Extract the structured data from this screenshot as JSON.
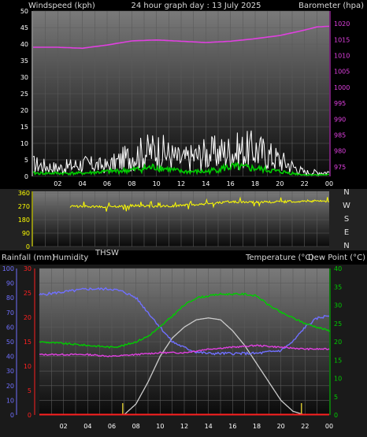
{
  "header": {
    "left": "Windspeed (kph)",
    "center": "24 hour graph day : 13 July 2025",
    "right": "Barometer (hpa)"
  },
  "middle_header": {
    "left": "Rainfall (mm)",
    "humidity": "Humidity",
    "thsw": "THSW",
    "temperature": "Temperature (°C)",
    "dew_point": "Dew Point (°C)"
  },
  "compass_labels": [
    "N",
    "W",
    "S",
    "E",
    "N"
  ],
  "colors": {
    "barometer": "#e040e0",
    "wind_gust": "#ffffff",
    "wind_avg": "#00cc00",
    "direction": "#ffff00",
    "humidity": "#7070ff",
    "temperature": "#00cc00",
    "dew_point": "#e040e0",
    "solar": "#cccccc",
    "rain_axis": "#ff2020",
    "temp_axis": "#00cc00"
  },
  "chart_data": [
    {
      "type": "line",
      "id": "wind-barometer",
      "x_ticks": [
        "02",
        "04",
        "06",
        "08",
        "10",
        "12",
        "14",
        "16",
        "18",
        "20",
        "22",
        "00"
      ],
      "left_axis": {
        "ticks": [
          0,
          5,
          10,
          15,
          20,
          25,
          30,
          35,
          40,
          45,
          50
        ],
        "ylim": [
          0,
          50
        ]
      },
      "right_axis": {
        "ticks": [
          975,
          980,
          985,
          990,
          995,
          1000,
          1005,
          1010,
          1015,
          1020
        ],
        "ylim": [
          972,
          1024
        ]
      },
      "series": [
        {
          "x": [
            0,
            2,
            4,
            6,
            8,
            10,
            12,
            14,
            16,
            18,
            20,
            22,
            23,
            24
          ],
          "values": [
            1012.6,
            1012.6,
            1012.3,
            1013.3,
            1014.6,
            1014.9,
            1014.5,
            1014.1,
            1014.5,
            1015.3,
            1016.3,
            1018.0,
            1019.0,
            1019.2
          ]
        }
      ],
      "wind_avg": {
        "x": [
          0,
          2,
          4,
          6,
          8,
          10,
          12,
          14,
          16,
          18,
          20,
          22,
          24
        ],
        "values": [
          1,
          1,
          1,
          1.5,
          2,
          3,
          1.5,
          1.5,
          3,
          2.5,
          1.5,
          0.5,
          0.5
        ]
      },
      "wind_gust": {
        "x": [
          0,
          2,
          4,
          6,
          8,
          10,
          12,
          14,
          16,
          18,
          20,
          22,
          24
        ],
        "values": [
          6,
          4,
          6,
          5,
          10,
          13,
          8,
          11,
          12,
          13,
          8,
          2,
          2
        ]
      }
    },
    {
      "type": "line",
      "id": "wind-direction",
      "left_axis": {
        "ticks": [
          0,
          90,
          180,
          270,
          360
        ],
        "ylim": [
          0,
          360
        ]
      },
      "series": [
        {
          "x": [
            0,
            2,
            4,
            6,
            8,
            10,
            12,
            14,
            16,
            18,
            20,
            22,
            24
          ],
          "values": [
            275,
            265,
            270,
            265,
            275,
            270,
            275,
            285,
            300,
            300,
            300,
            305,
            305
          ]
        }
      ]
    },
    {
      "type": "line",
      "id": "temp-humidity-rain",
      "x_ticks": [
        "02",
        "04",
        "06",
        "08",
        "10",
        "12",
        "14",
        "16",
        "18",
        "20",
        "22",
        "00"
      ],
      "humidity_axis": {
        "ticks": [
          0,
          10,
          20,
          30,
          40,
          50,
          60,
          70,
          80,
          90,
          100
        ],
        "ylim": [
          0,
          100
        ]
      },
      "rain_axis": {
        "ticks": [
          0,
          5,
          10,
          15,
          20,
          25,
          30
        ],
        "ylim": [
          0,
          30
        ]
      },
      "temp_axis": {
        "ticks": [
          0,
          5,
          10,
          15,
          20,
          25,
          30,
          35,
          40
        ],
        "ylim": [
          0,
          40
        ]
      },
      "series": [
        {
          "x": [
            0,
            2,
            4,
            6,
            7,
            8,
            9,
            10,
            11,
            12,
            13,
            14,
            15,
            16,
            18,
            20,
            21,
            22,
            23,
            24
          ],
          "values": [
            82,
            84,
            86,
            86,
            84,
            80,
            70,
            60,
            50,
            46,
            43,
            42,
            42,
            42,
            42,
            44,
            50,
            60,
            66,
            68
          ]
        },
        {
          "x": [
            0,
            2,
            4,
            6,
            7,
            8,
            9,
            10,
            11,
            12,
            13,
            14,
            15,
            16,
            17,
            18,
            19,
            20,
            21,
            22,
            23,
            24
          ],
          "values": [
            20,
            19.5,
            19,
            18.5,
            19,
            20,
            21.5,
            24,
            27,
            30,
            32,
            32.5,
            33,
            33,
            33,
            32.5,
            30,
            28,
            26.5,
            25,
            24,
            23
          ]
        },
        {
          "x": [
            0,
            2,
            4,
            6,
            8,
            10,
            12,
            14,
            16,
            18,
            20,
            22,
            24
          ],
          "values": [
            16.5,
            16.5,
            16.5,
            16,
            16.5,
            17,
            17,
            18,
            18.5,
            19,
            18.5,
            18,
            18
          ]
        },
        {
          "x": [
            7,
            8,
            9,
            10,
            11,
            12,
            13,
            14,
            15,
            16,
            17,
            18,
            19,
            20,
            21,
            22
          ],
          "values": [
            0,
            3,
            9,
            16,
            21,
            24,
            26,
            26.5,
            26,
            23,
            19,
            14,
            9,
            4,
            1,
            0
          ]
        }
      ],
      "rain_markers": [
        6.9,
        21.7
      ]
    }
  ]
}
